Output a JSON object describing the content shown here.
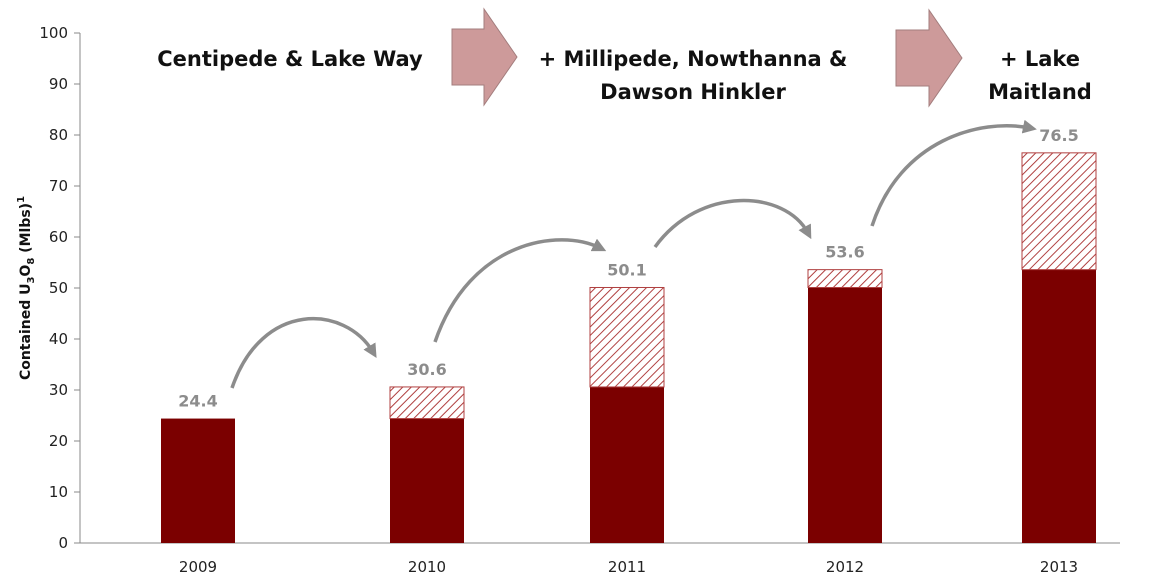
{
  "chart_data": {
    "type": "bar",
    "stacked": true,
    "categories": [
      "2009",
      "2010",
      "2011",
      "2012",
      "2013"
    ],
    "series": [
      {
        "values": [
          24.4,
          24.4,
          30.6,
          50.1,
          53.6
        ],
        "color": "#7b0000"
      },
      {
        "values": [
          0,
          6.2,
          19.5,
          3.5,
          22.9
        ],
        "pattern": "diagonal-hatch",
        "color": "#b04040"
      }
    ],
    "totals": [
      24.4,
      30.6,
      50.1,
      53.6,
      76.5
    ],
    "data_labels": [
      "24.4",
      "30.6",
      "50.1",
      "53.6",
      "76.5"
    ],
    "ylabel": "Contained U3O8 (Mlbs)1",
    "ylabel_parts": {
      "a": "Contained U",
      "sub1": "3",
      "b": "O",
      "sub2": "8",
      "c": " (Mlbs)",
      "sup": "1"
    },
    "ylim": [
      0,
      100
    ],
    "yticks": [
      0,
      10,
      20,
      30,
      40,
      50,
      60,
      70,
      80,
      90,
      100
    ],
    "grid": false,
    "annotations": {
      "phases": [
        {
          "lines": [
            "Centipede & Lake Way"
          ]
        },
        {
          "lines": [
            "+ Millipede, Nowthanna &",
            "Dawson Hinkler"
          ]
        },
        {
          "lines": [
            "+ Lake",
            "Maitland"
          ]
        }
      ],
      "phase_arrow_color": "#c89090",
      "curved_arrow_color": "#8c8c8c"
    }
  }
}
